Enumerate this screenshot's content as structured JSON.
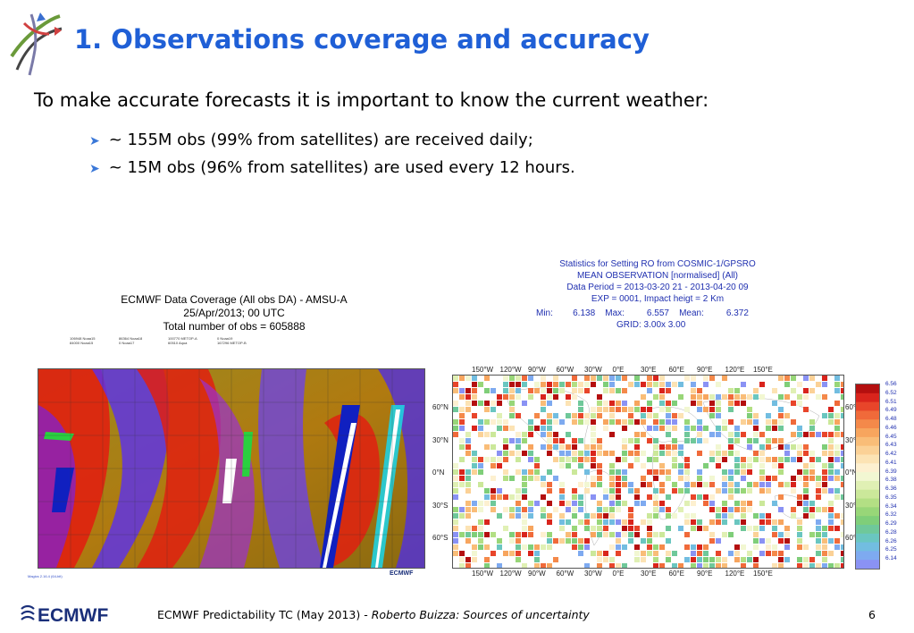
{
  "slide": {
    "title": "1. Observations coverage and accuracy",
    "intro": "To make accurate forecasts it is important to know the current weather:",
    "bullets": [
      "~ 155M obs (99% from satellites) are received daily;",
      "~ 15M obs (96% from satellites) are used every 12 hours."
    ],
    "footer_text": "ECMWF Predictability TC (May 2013) - ",
    "footer_author": "Roberto Buizza: Sources of uncertainty",
    "page_number": "6",
    "footer_logo_text": "ECMWF"
  },
  "left_map": {
    "title_lines": [
      "ECMWF Data Coverage (All obs DA) - AMSU-A",
      "25/Apr/2013; 00 UTC",
      "Total number of obs  = 605888"
    ],
    "legend": [
      "106948 Noaa15",
      "86364 Noaa18",
      "100770 METOP-A",
      "0 Noaa19",
      "84000 Noaa15",
      "0 Noaa17",
      "60510 Aqua",
      "167296 METOP-B"
    ],
    "footnote": "Magics 2.16.4 (64-bit)",
    "logo": "ECMWF"
  },
  "right_map": {
    "header_lines": [
      "Statistics for  Setting RO  from COSMIC-1/GPSRO",
      "MEAN OBSERVATION [normalised] (All)",
      "Data Period = 2013-03-20 21 - 2013-04-20 09",
      "EXP = 0001, Impact heigt = 2 Km"
    ],
    "stats_line": "Min:        6.138    Max:         6.557    Mean:         6.372",
    "grid_line": "GRID:  3.00x 3.00",
    "lon_labels": [
      "150°W",
      "120°W",
      "90°W",
      "60°W",
      "30°W",
      "0°E",
      "30°E",
      "60°E",
      "90°E",
      "120°E",
      "150°E"
    ],
    "lat_labels": [
      "60°N",
      "30°N",
      "0°N",
      "30°S",
      "60°S"
    ],
    "colorbar_labels": [
      "6.56",
      "6.52",
      "6.51",
      "6.49",
      "6.48",
      "6.46",
      "6.45",
      "6.43",
      "6.42",
      "6.41",
      "6.39",
      "6.38",
      "6.36",
      "6.35",
      "6.34",
      "6.32",
      "6.29",
      "6.28",
      "6.26",
      "6.25",
      "6.14"
    ],
    "colorbar_colors": [
      "#b40f0f",
      "#d9241c",
      "#e8452a",
      "#f06a3a",
      "#f4894a",
      "#f7a55e",
      "#f9bd78",
      "#fbd196",
      "#fce3b4",
      "#fdf0d0",
      "#f2f7d2",
      "#e0f0b4",
      "#cbe89a",
      "#b3df84",
      "#98d678",
      "#7fce79",
      "#6fc89a",
      "#6ac6c0",
      "#72bde0",
      "#7eaaf0",
      "#8a92f4"
    ]
  }
}
